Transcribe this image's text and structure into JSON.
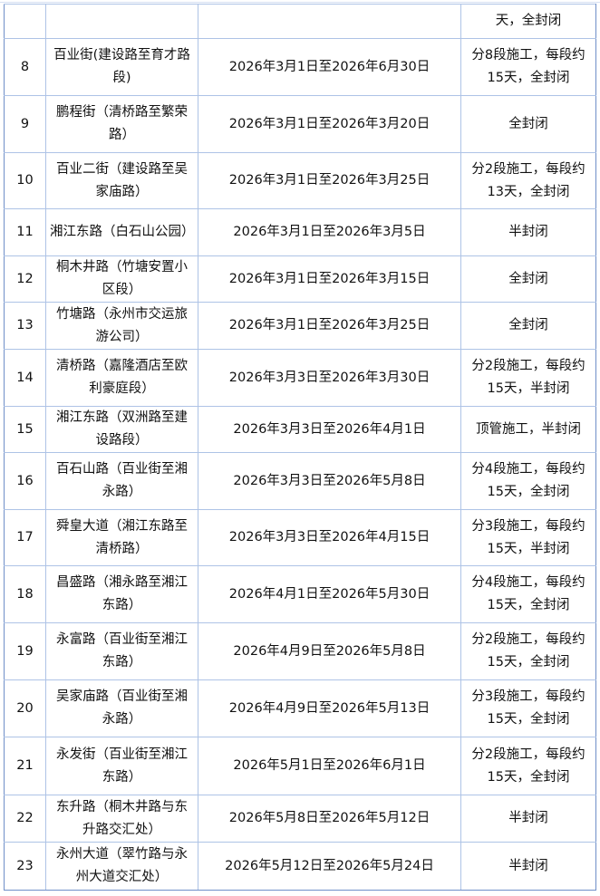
{
  "table": {
    "rows": [
      {
        "no": "",
        "road": "",
        "period": "",
        "method": "天，全封闭"
      },
      {
        "no": "8",
        "road": "百业街(建设路至育才路段)",
        "period": "2026年3月1日至2026年6月30日",
        "method": "分8段施工，每段约15天，全封闭"
      },
      {
        "no": "9",
        "road": "鹏程街（清桥路至繁荣路）",
        "period": "2026年3月1日至2026年3月20日",
        "method": "全封闭"
      },
      {
        "no": "10",
        "road": "百业二街（建设路至吴家庙路）",
        "period": "2026年3月1日至2026年3月25日",
        "method": "分2段施工，每段约13天，全封闭"
      },
      {
        "no": "11",
        "road": "湘江东路（白石山公园）",
        "period": "2026年3月1日至2026年3月5日",
        "method": "半封闭"
      },
      {
        "no": "12",
        "road": "桐木井路（竹塘安置小区段）",
        "period": "2026年3月1日至2026年3月15日",
        "method": "全封闭"
      },
      {
        "no": "13",
        "road": "竹塘路（永州市交运旅游公司）",
        "period": "2026年3月1日至2026年3月25日",
        "method": "全封闭"
      },
      {
        "no": "14",
        "road": "清桥路（嘉隆酒店至欧利豪庭段）",
        "period": "2026年3月3日至2026年3月30日",
        "method": "分2段施工，每段约15天，半封闭"
      },
      {
        "no": "15",
        "road": "湘江东路（双洲路至建设路段）",
        "period": "2026年3月3日至2026年4月1日",
        "method": "顶管施工，半封闭"
      },
      {
        "no": "16",
        "road": "百石山路（百业街至湘永路）",
        "period": "2026年3月3日至2026年5月8日",
        "method": "分4段施工，每段约15天，全封闭"
      },
      {
        "no": "17",
        "road": "舜皇大道（湘江东路至清桥路）",
        "period": "2026年3月3日至2026年4月15日",
        "method": "分3段施工，每段约15天，半封闭"
      },
      {
        "no": "18",
        "road": "昌盛路（湘永路至湘江东路）",
        "period": "2026年4月1日至2026年5月30日",
        "method": "分4段施工，每段约15天，全封闭"
      },
      {
        "no": "19",
        "road": "永富路（百业街至湘江东路）",
        "period": "2026年4月9日至2026年5月8日",
        "method": "分2段施工，每段约15天，全封闭"
      },
      {
        "no": "20",
        "road": "吴家庙路（百业街至湘永路）",
        "period": "2026年4月9日至2026年5月13日",
        "method": "分3段施工，每段约15天，全封闭"
      },
      {
        "no": "21",
        "road": "永发街（百业街至湘江东路）",
        "period": "2026年5月1日至2026年6月1日",
        "method": "分2段施工，每段约15天，全封闭"
      },
      {
        "no": "22",
        "road": "东升路（桐木井路与东升路交汇处）",
        "period": "2026年5月8日至2026年5月12日",
        "method": "半封闭"
      },
      {
        "no": "23",
        "road": "永州大道（翠竹路与永州大道交汇处）",
        "period": "2026年5月12日至2026年5月24日",
        "method": "半封闭"
      }
    ]
  }
}
